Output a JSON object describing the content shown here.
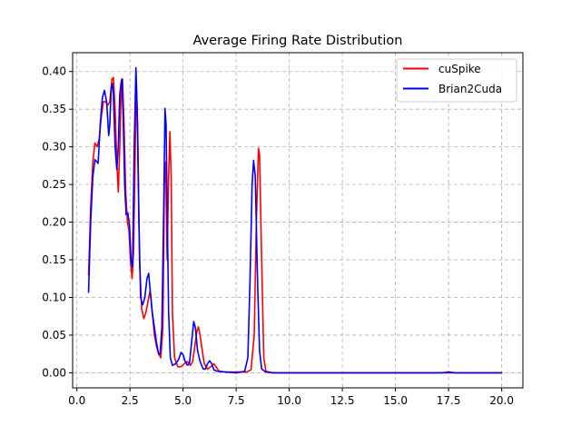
{
  "chart_data": {
    "type": "line",
    "title": "Average Firing Rate Distribution",
    "xlabel": "",
    "ylabel": "",
    "xlim": [
      -0.2,
      21.0
    ],
    "ylim": [
      -0.02,
      0.425
    ],
    "xticks": [
      0.0,
      2.5,
      5.0,
      7.5,
      10.0,
      12.5,
      15.0,
      17.5,
      20.0
    ],
    "xtick_labels": [
      "0.0",
      "2.5",
      "5.0",
      "7.5",
      "10.0",
      "12.5",
      "15.0",
      "17.5",
      "20.0"
    ],
    "yticks": [
      0.0,
      0.05,
      0.1,
      0.15,
      0.2,
      0.25,
      0.3,
      0.35,
      0.4
    ],
    "ytick_labels": [
      "0.00",
      "0.05",
      "0.10",
      "0.15",
      "0.20",
      "0.25",
      "0.30",
      "0.35",
      "0.40"
    ],
    "grid": true,
    "legend_position": "top-right",
    "series": [
      {
        "name": "cuSpike",
        "color": "#ff0000",
        "points": [
          [
            0.55,
            0.13
          ],
          [
            0.65,
            0.22
          ],
          [
            0.75,
            0.28
          ],
          [
            0.85,
            0.305
          ],
          [
            0.95,
            0.3
          ],
          [
            1.05,
            0.31
          ],
          [
            1.15,
            0.34
          ],
          [
            1.25,
            0.36
          ],
          [
            1.35,
            0.36
          ],
          [
            1.45,
            0.355
          ],
          [
            1.55,
            0.36
          ],
          [
            1.65,
            0.39
          ],
          [
            1.72,
            0.392
          ],
          [
            1.8,
            0.35
          ],
          [
            1.88,
            0.28
          ],
          [
            1.95,
            0.24
          ],
          [
            2.02,
            0.3
          ],
          [
            2.1,
            0.385
          ],
          [
            2.15,
            0.39
          ],
          [
            2.22,
            0.33
          ],
          [
            2.3,
            0.24
          ],
          [
            2.38,
            0.2
          ],
          [
            2.45,
            0.19
          ],
          [
            2.52,
            0.15
          ],
          [
            2.6,
            0.125
          ],
          [
            2.67,
            0.16
          ],
          [
            2.75,
            0.3
          ],
          [
            2.8,
            0.378
          ],
          [
            2.86,
            0.33
          ],
          [
            2.95,
            0.15
          ],
          [
            3.05,
            0.085
          ],
          [
            3.15,
            0.072
          ],
          [
            3.25,
            0.08
          ],
          [
            3.35,
            0.095
          ],
          [
            3.45,
            0.11
          ],
          [
            3.55,
            0.08
          ],
          [
            3.65,
            0.05
          ],
          [
            3.75,
            0.035
          ],
          [
            3.85,
            0.025
          ],
          [
            3.95,
            0.02
          ],
          [
            4.05,
            0.06
          ],
          [
            4.12,
            0.25
          ],
          [
            4.18,
            0.28
          ],
          [
            4.25,
            0.15
          ],
          [
            4.32,
            0.26
          ],
          [
            4.38,
            0.32
          ],
          [
            4.44,
            0.26
          ],
          [
            4.5,
            0.08
          ],
          [
            4.6,
            0.02
          ],
          [
            4.75,
            0.008
          ],
          [
            4.9,
            0.008
          ],
          [
            5.05,
            0.012
          ],
          [
            5.2,
            0.015
          ],
          [
            5.35,
            0.01
          ],
          [
            5.45,
            0.015
          ],
          [
            5.55,
            0.035
          ],
          [
            5.65,
            0.055
          ],
          [
            5.72,
            0.061
          ],
          [
            5.8,
            0.05
          ],
          [
            5.9,
            0.03
          ],
          [
            6.0,
            0.012
          ],
          [
            6.15,
            0.005
          ],
          [
            6.3,
            0.008
          ],
          [
            6.45,
            0.012
          ],
          [
            6.55,
            0.008
          ],
          [
            6.7,
            0.002
          ],
          [
            7.0,
            0.001
          ],
          [
            7.5,
            0.001
          ],
          [
            8.0,
            0.001
          ],
          [
            8.2,
            0.004
          ],
          [
            8.35,
            0.05
          ],
          [
            8.45,
            0.2
          ],
          [
            8.55,
            0.298
          ],
          [
            8.6,
            0.29
          ],
          [
            8.7,
            0.15
          ],
          [
            8.8,
            0.02
          ],
          [
            8.9,
            0.002
          ],
          [
            9.2,
            0.0
          ],
          [
            20.0,
            0.0
          ]
        ]
      },
      {
        "name": "Brian2Cuda",
        "color": "#0000ff",
        "points": [
          [
            0.55,
            0.107
          ],
          [
            0.65,
            0.2
          ],
          [
            0.75,
            0.26
          ],
          [
            0.85,
            0.283
          ],
          [
            0.95,
            0.28
          ],
          [
            1.0,
            0.278
          ],
          [
            1.1,
            0.33
          ],
          [
            1.2,
            0.365
          ],
          [
            1.3,
            0.375
          ],
          [
            1.4,
            0.36
          ],
          [
            1.5,
            0.315
          ],
          [
            1.55,
            0.33
          ],
          [
            1.62,
            0.38
          ],
          [
            1.67,
            0.384
          ],
          [
            1.72,
            0.37
          ],
          [
            1.8,
            0.3
          ],
          [
            1.88,
            0.27
          ],
          [
            1.95,
            0.3
          ],
          [
            2.02,
            0.37
          ],
          [
            2.08,
            0.385
          ],
          [
            2.12,
            0.39
          ],
          [
            2.18,
            0.34
          ],
          [
            2.25,
            0.25
          ],
          [
            2.32,
            0.21
          ],
          [
            2.4,
            0.212
          ],
          [
            2.48,
            0.195
          ],
          [
            2.55,
            0.15
          ],
          [
            2.62,
            0.14
          ],
          [
            2.7,
            0.3
          ],
          [
            2.78,
            0.405
          ],
          [
            2.84,
            0.35
          ],
          [
            2.92,
            0.2
          ],
          [
            3.0,
            0.1
          ],
          [
            3.1,
            0.09
          ],
          [
            3.2,
            0.1
          ],
          [
            3.3,
            0.125
          ],
          [
            3.38,
            0.132
          ],
          [
            3.45,
            0.11
          ],
          [
            3.55,
            0.08
          ],
          [
            3.65,
            0.06
          ],
          [
            3.75,
            0.04
          ],
          [
            3.85,
            0.025
          ],
          [
            3.92,
            0.025
          ],
          [
            4.0,
            0.06
          ],
          [
            4.08,
            0.2
          ],
          [
            4.15,
            0.351
          ],
          [
            4.2,
            0.33
          ],
          [
            4.26,
            0.2
          ],
          [
            4.32,
            0.08
          ],
          [
            4.4,
            0.02
          ],
          [
            4.5,
            0.01
          ],
          [
            4.65,
            0.012
          ],
          [
            4.8,
            0.018
          ],
          [
            4.9,
            0.027
          ],
          [
            5.0,
            0.024
          ],
          [
            5.1,
            0.015
          ],
          [
            5.2,
            0.01
          ],
          [
            5.3,
            0.012
          ],
          [
            5.4,
            0.04
          ],
          [
            5.5,
            0.068
          ],
          [
            5.58,
            0.06
          ],
          [
            5.68,
            0.03
          ],
          [
            5.8,
            0.015
          ],
          [
            5.95,
            0.005
          ],
          [
            6.05,
            0.005
          ],
          [
            6.15,
            0.012
          ],
          [
            6.25,
            0.016
          ],
          [
            6.35,
            0.012
          ],
          [
            6.45,
            0.004
          ],
          [
            6.6,
            0.002
          ],
          [
            7.0,
            0.001
          ],
          [
            7.5,
            0.0
          ],
          [
            7.9,
            0.002
          ],
          [
            8.05,
            0.02
          ],
          [
            8.15,
            0.12
          ],
          [
            8.25,
            0.25
          ],
          [
            8.32,
            0.282
          ],
          [
            8.4,
            0.26
          ],
          [
            8.5,
            0.13
          ],
          [
            8.6,
            0.03
          ],
          [
            8.7,
            0.005
          ],
          [
            8.9,
            0.001
          ],
          [
            9.2,
            0.0
          ],
          [
            17.2,
            0.0
          ],
          [
            17.5,
            0.001
          ],
          [
            17.8,
            0.0
          ],
          [
            20.0,
            0.0
          ]
        ]
      }
    ]
  }
}
